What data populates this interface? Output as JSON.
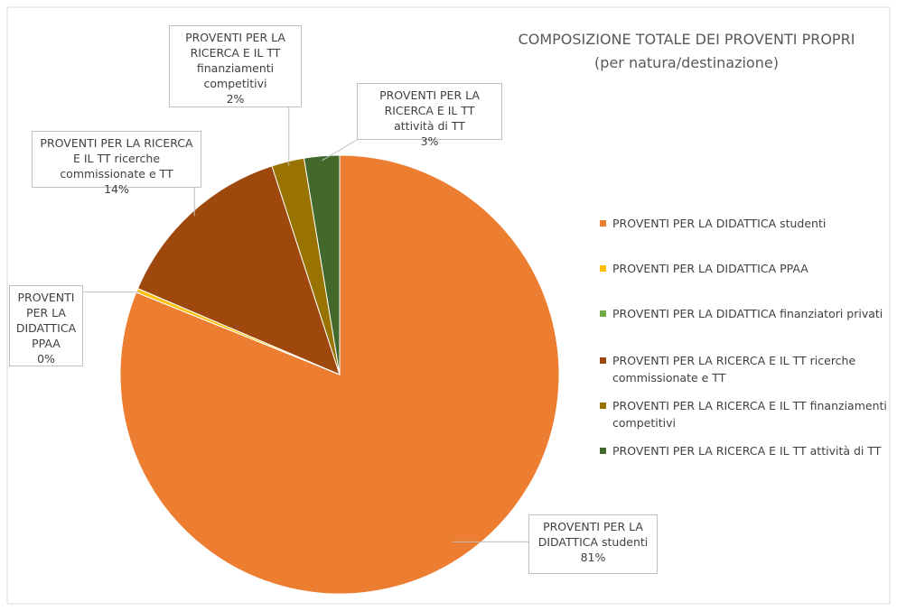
{
  "chart_data": {
    "type": "pie",
    "title": "COMPOSIZIONE TOTALE DEI PROVENTI PROPRI",
    "subtitle": "(per natura/destinazione)",
    "categories": [
      "PROVENTI PER LA DIDATTICA studenti",
      "PROVENTI PER LA DIDATTICA PPAA",
      "PROVENTI PER LA DIDATTICA finanziatori privati",
      "PROVENTI PER LA RICERCA E IL TT ricerche commissionate e TT",
      "PROVENTI PER LA RICERCA E IL TT finanziamenti competitivi",
      "PROVENTI PER LA RICERCA E IL TT attività di TT"
    ],
    "values": [
      81.2,
      0.3,
      0,
      13.6,
      2.4,
      2.6
    ],
    "value_labels": [
      "81%",
      "0%",
      null,
      "14%",
      "2%",
      "3%"
    ],
    "colors": [
      "#ed7d31",
      "#ffc000",
      "#70ad47",
      "#9e480e",
      "#997300",
      "#43682b"
    ],
    "legend": "right"
  }
}
